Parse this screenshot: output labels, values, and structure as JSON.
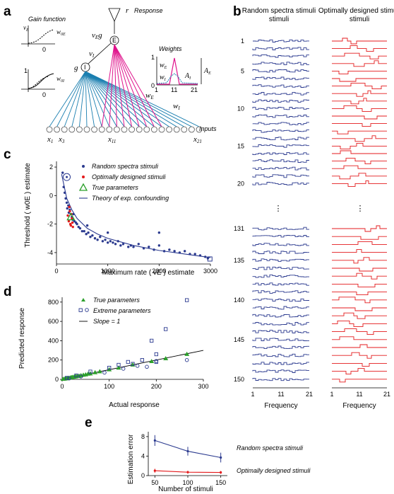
{
  "panels": {
    "a": {
      "label": "a",
      "gain_function_title": "Gain function",
      "response_label": "Response",
      "weights_title": "Weights",
      "inputs_label": "Inputs",
      "input_tick_labels": [
        "x1",
        "x3",
        "x11",
        "x21"
      ],
      "weights_x_ticks": [
        "1",
        "11",
        "21"
      ],
      "symbols": [
        "r",
        "vEg",
        "E",
        "I",
        "g",
        "vI",
        "wE",
        "wI",
        "w0E",
        "w0I",
        "vE",
        "AE",
        "AI"
      ],
      "colors": {
        "excitatory": "#e0138c",
        "inhibitory": "#1b7fb0",
        "units": "#555555"
      }
    },
    "b": {
      "label": "b",
      "column_titles": [
        "Random spectra stimuli",
        "Optimally designed stimuli"
      ],
      "row_labels": [
        "1",
        "5",
        "10",
        "15",
        "20",
        "131",
        "135",
        "140",
        "145",
        "150"
      ],
      "x_ticks": [
        "1",
        "11",
        "21"
      ],
      "xlabel": "Frequency",
      "colors": {
        "random": "#2b3a8f",
        "optimal": "#e41a1c"
      }
    },
    "e": {
      "label": "e",
      "ylabel": "Estimation error",
      "xlabel": "Number of stimuli",
      "series_labels": [
        "Random spectra stimuli",
        "Optimally designed stimuli"
      ]
    }
  },
  "chart_data": [
    {
      "panel": "c",
      "type": "scatter",
      "title": "",
      "xlabel": "Maximum rate ( vE ) estimate",
      "ylabel": "Threshold ( w0E ) estimate",
      "xlim": [
        0,
        3000
      ],
      "ylim": [
        -4.8,
        2.4
      ],
      "xticks": [
        0,
        1000,
        2000,
        3000
      ],
      "yticks": [
        -4,
        -2,
        0,
        2
      ],
      "legend": [
        "Random spectra stimuli",
        "Optimally designed stimuli",
        "True parameters",
        "Theory of exp. confounding"
      ],
      "legend_position": "top-right",
      "series": [
        {
          "name": "Random spectra stimuli",
          "color": "#2b3a8f",
          "points": [
            [
              120,
              1.6
            ],
            [
              140,
              0.6
            ],
            [
              160,
              0.2
            ],
            [
              180,
              -0.2
            ],
            [
              200,
              -0.5
            ],
            [
              210,
              -0.9
            ],
            [
              230,
              -0.7
            ],
            [
              240,
              -1.2
            ],
            [
              260,
              -1.0
            ],
            [
              280,
              -1.3
            ],
            [
              300,
              -1.5
            ],
            [
              320,
              -1.7
            ],
            [
              350,
              -1.8
            ],
            [
              380,
              -1.9
            ],
            [
              400,
              -2.0
            ],
            [
              430,
              -2.2
            ],
            [
              460,
              -2.3
            ],
            [
              500,
              -2.5
            ],
            [
              540,
              -2.5
            ],
            [
              580,
              -2.7
            ],
            [
              620,
              -2.6
            ],
            [
              660,
              -2.9
            ],
            [
              700,
              -2.8
            ],
            [
              750,
              -3.0
            ],
            [
              800,
              -3.1
            ],
            [
              850,
              -2.9
            ],
            [
              900,
              -3.2
            ],
            [
              950,
              -3.1
            ],
            [
              1000,
              -3.3
            ],
            [
              1050,
              -3.2
            ],
            [
              1100,
              -3.3
            ],
            [
              1150,
              -3.4
            ],
            [
              1200,
              -3.2
            ],
            [
              1250,
              -3.5
            ],
            [
              1300,
              -3.4
            ],
            [
              1400,
              -3.6
            ],
            [
              1450,
              -3.5
            ],
            [
              1500,
              -3.6
            ],
            [
              1600,
              -3.4
            ],
            [
              1700,
              -3.7
            ],
            [
              1800,
              -3.6
            ],
            [
              1900,
              -3.8
            ],
            [
              2000,
              -3.5
            ],
            [
              2100,
              -3.9
            ],
            [
              2200,
              -3.8
            ],
            [
              2300,
              -3.9
            ],
            [
              2400,
              -4.0
            ],
            [
              2500,
              -3.9
            ],
            [
              2600,
              -4.1
            ],
            [
              2700,
              -4.1
            ],
            [
              2800,
              -4.2
            ],
            [
              2900,
              -4.3
            ],
            [
              2950,
              -4.4
            ],
            [
              2000,
              -2.6
            ],
            [
              1000,
              -2.6
            ],
            [
              600,
              -2.1
            ],
            [
              330,
              -1.3
            ]
          ]
        },
        {
          "name": "Optimally designed stimuli",
          "color": "#e41a1c",
          "points": [
            [
              220,
              -1.4
            ],
            [
              240,
              -1.8
            ],
            [
              260,
              -1.1
            ],
            [
              280,
              -2.1
            ],
            [
              300,
              -1.6
            ],
            [
              320,
              -2.2
            ],
            [
              250,
              -0.8
            ],
            [
              270,
              -2.0
            ],
            [
              290,
              -1.3
            ],
            [
              310,
              -1.9
            ]
          ]
        },
        {
          "name": "True parameters",
          "color": "#2ca02c",
          "points": [
            [
              280,
              -1.5
            ]
          ]
        },
        {
          "name": "Extreme parameters",
          "color": "#2b3a8f",
          "points": [
            [
              200,
              1.3
            ],
            [
              2990,
              -4.45
            ]
          ]
        }
      ],
      "theory_curve": {
        "name": "Theory of exp. confounding",
        "x": [
          100,
          200,
          300,
          400,
          600,
          800,
          1000,
          1500,
          2000,
          2500,
          3000
        ],
        "y": [
          1.5,
          -0.2,
          -1.0,
          -1.6,
          -2.3,
          -2.7,
          -3.0,
          -3.5,
          -3.85,
          -4.1,
          -4.35
        ]
      }
    },
    {
      "panel": "d",
      "type": "scatter",
      "title": "",
      "xlabel": "Actual response",
      "ylabel": "Predicted response",
      "xlim": [
        0,
        300
      ],
      "ylim": [
        0,
        850
      ],
      "xticks": [
        0,
        100,
        200,
        300
      ],
      "yticks": [
        0,
        200,
        400,
        600,
        800
      ],
      "legend": [
        "True parameters",
        "Extreme parameters",
        "Slope = 1"
      ],
      "legend_position": "top-left",
      "series": [
        {
          "name": "True parameters",
          "marker": "triangle",
          "color": "#2ca02c",
          "points": [
            [
              2,
              2
            ],
            [
              5,
              4
            ],
            [
              8,
              7
            ],
            [
              10,
              9
            ],
            [
              12,
              12
            ],
            [
              15,
              14
            ],
            [
              18,
              18
            ],
            [
              20,
              19
            ],
            [
              22,
              22
            ],
            [
              25,
              24
            ],
            [
              28,
              27
            ],
            [
              30,
              30
            ],
            [
              33,
              32
            ],
            [
              36,
              35
            ],
            [
              40,
              40
            ],
            [
              45,
              44
            ],
            [
              50,
              48
            ],
            [
              55,
              55
            ],
            [
              60,
              58
            ],
            [
              70,
              70
            ],
            [
              80,
              80
            ],
            [
              100,
              100
            ],
            [
              120,
              118
            ],
            [
              150,
              150
            ],
            [
              190,
              185
            ],
            [
              220,
              215
            ],
            [
              265,
              260
            ]
          ]
        },
        {
          "name": "Extreme parameters (square)",
          "marker": "square",
          "color": "#2b3a8f",
          "points": [
            [
              10,
              15
            ],
            [
              30,
              40
            ],
            [
              60,
              80
            ],
            [
              100,
              120
            ],
            [
              120,
              150
            ],
            [
              140,
              180
            ],
            [
              150,
              160
            ],
            [
              170,
              200
            ],
            [
              190,
              400
            ],
            [
              200,
              260
            ],
            [
              220,
              520
            ],
            [
              265,
              820
            ],
            [
              200,
              180
            ]
          ]
        },
        {
          "name": "Extreme parameters (circle)",
          "marker": "circle",
          "color": "#2b3a8f",
          "points": [
            [
              15,
              10
            ],
            [
              40,
              30
            ],
            [
              90,
              70
            ],
            [
              130,
              110
            ],
            [
              160,
              140
            ],
            [
              180,
              130
            ],
            [
              200,
              190
            ],
            [
              265,
              200
            ]
          ]
        }
      ],
      "slope_line": {
        "name": "Slope = 1",
        "x": [
          0,
          300
        ],
        "y": [
          0,
          300
        ]
      }
    },
    {
      "panel": "e",
      "type": "line",
      "title": "",
      "xlabel": "Number of stimuli",
      "ylabel": "Estimation error",
      "x": [
        50,
        100,
        150
      ],
      "xlim": [
        40,
        160
      ],
      "ylim": [
        0,
        9
      ],
      "yticks": [
        0,
        4,
        8
      ],
      "series": [
        {
          "name": "Random spectra stimuli",
          "color": "#2b3a8f",
          "values": [
            7.2,
            5.0,
            3.7
          ],
          "errors": [
            1.1,
            0.9,
            1.0
          ]
        },
        {
          "name": "Optimally designed stimuli",
          "color": "#e41a1c",
          "values": [
            1.0,
            0.7,
            0.65
          ],
          "errors": [
            0.4,
            0.3,
            0.3
          ]
        }
      ]
    }
  ]
}
